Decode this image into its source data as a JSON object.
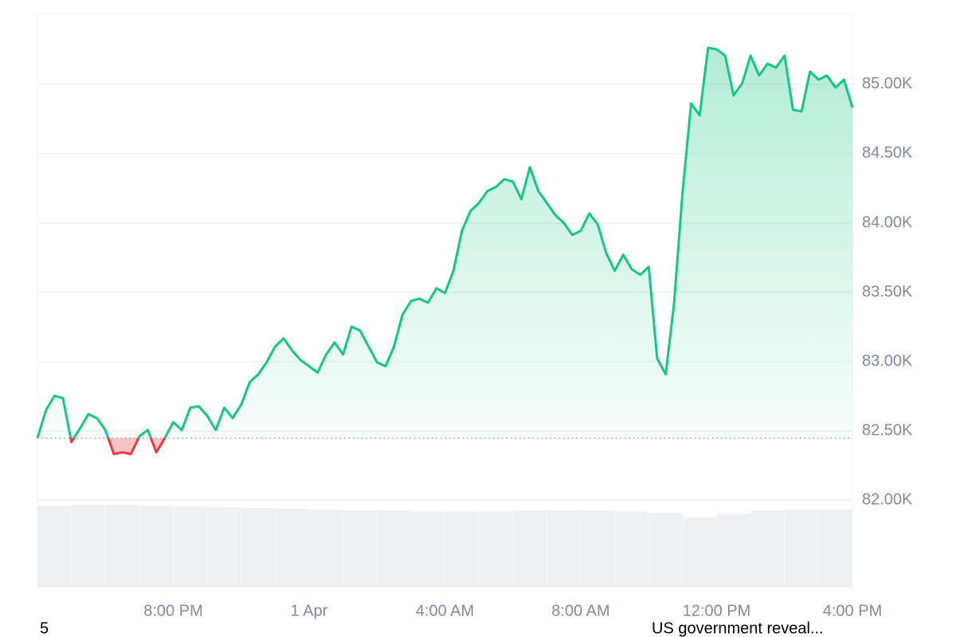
{
  "chart_data": {
    "type": "line",
    "color": "#16c784",
    "below_color": "#ea3943",
    "baseline": 82448,
    "x": [
      0,
      0.25,
      0.5,
      0.75,
      1,
      1.25,
      1.5,
      1.75,
      2,
      2.25,
      2.5,
      2.75,
      3,
      3.25,
      3.5,
      3.75,
      4,
      4.25,
      4.5,
      4.75,
      5,
      5.25,
      5.5,
      5.75,
      6,
      6.25,
      6.5,
      6.75,
      7,
      7.25,
      7.5,
      7.75,
      8,
      8.25,
      8.5,
      8.75,
      9,
      9.25,
      9.5,
      9.75,
      10,
      10.25,
      10.5,
      10.75,
      11,
      11.25,
      11.5,
      11.75,
      12,
      12.25,
      12.5,
      12.75,
      13,
      13.25,
      13.5,
      13.75,
      14,
      14.25,
      14.5,
      14.75,
      15,
      15.25,
      15.5,
      15.75,
      16,
      16.25,
      16.5,
      16.75,
      17,
      17.25,
      17.5,
      17.75,
      18,
      18.25,
      18.5,
      18.75,
      19,
      19.25,
      19.5,
      19.75,
      20,
      20.25,
      20.5,
      20.75,
      21,
      21.25,
      21.5,
      21.75,
      22,
      22.25,
      22.5,
      22.75,
      23,
      23.25,
      23.5,
      23.75,
      24
    ],
    "values": [
      82448,
      82649,
      82753,
      82736,
      82420,
      82517,
      82621,
      82592,
      82506,
      82333,
      82345,
      82333,
      82460,
      82506,
      82345,
      82448,
      82563,
      82506,
      82667,
      82678,
      82609,
      82506,
      82667,
      82592,
      82690,
      82851,
      82908,
      82994,
      83109,
      83167,
      83080,
      83011,
      82966,
      82920,
      83051,
      83138,
      83051,
      83253,
      83224,
      83109,
      82994,
      82966,
      83109,
      83339,
      83437,
      83454,
      83425,
      83529,
      83494,
      83655,
      83943,
      84086,
      84144,
      84230,
      84259,
      84316,
      84299,
      84172,
      84402,
      84230,
      84144,
      84057,
      84000,
      83914,
      83943,
      84069,
      83989,
      83782,
      83655,
      83770,
      83667,
      83626,
      83684,
      83023,
      82908,
      83425,
      84230,
      84862,
      84776,
      85264,
      85253,
      85207,
      84920,
      85006,
      85207,
      85063,
      85149,
      85121,
      85207,
      84816,
      84805,
      85092,
      85034,
      85063,
      84977,
      85034,
      84833
    ],
    "xlim": [
      0,
      24
    ],
    "xticks": [
      {
        "value": 4,
        "label": "8:00 PM"
      },
      {
        "value": 8,
        "label": "1 Apr"
      },
      {
        "value": 12,
        "label": "4:00 AM"
      },
      {
        "value": 16,
        "label": "8:00 AM"
      },
      {
        "value": 20,
        "label": "12:00 PM"
      },
      {
        "value": 24,
        "label": "4:00 PM"
      }
    ],
    "ylim": [
      81375,
      85505
    ],
    "yticks": [
      {
        "value": 82000,
        "label": "82.00K"
      },
      {
        "value": 82500,
        "label": "82.50K"
      },
      {
        "value": 83000,
        "label": "83.00K"
      },
      {
        "value": 83500,
        "label": "83.50K"
      },
      {
        "value": 84000,
        "label": "84.00K"
      },
      {
        "value": 84500,
        "label": "84.50K"
      },
      {
        "value": 85000,
        "label": "85.00K"
      }
    ],
    "grid": true,
    "volume": {
      "color": "#eef0f4",
      "ylim": [
        0,
        100
      ],
      "values": [
        100,
        101,
        101,
        100,
        99,
        98,
        97,
        96,
        95,
        94,
        94,
        93,
        93,
        93,
        94,
        94,
        94,
        93,
        91,
        86,
        90,
        94,
        95,
        95
      ]
    },
    "annotations": [
      "5",
      "US government reveal..."
    ]
  }
}
